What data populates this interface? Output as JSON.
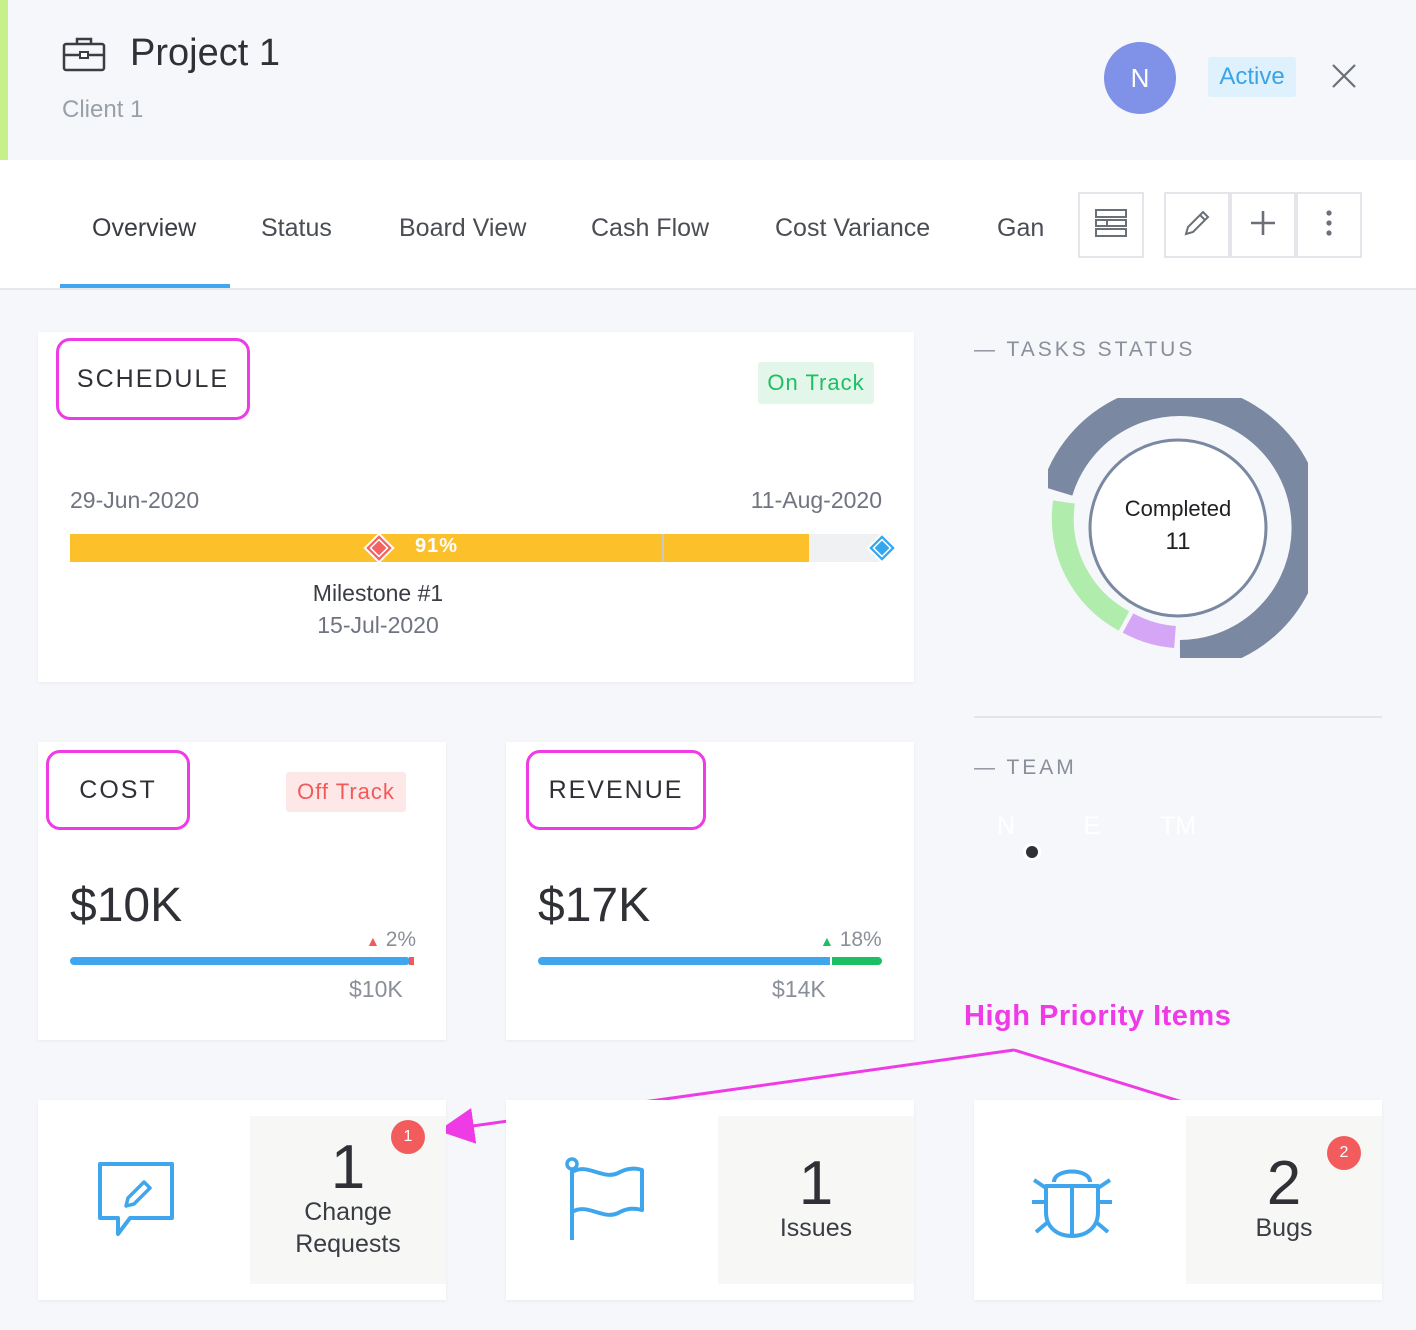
{
  "header": {
    "title": "Project 1",
    "client": "Client 1",
    "owner_initial": "N",
    "status": "Active"
  },
  "tabs": [
    {
      "label": "Overview"
    },
    {
      "label": "Status"
    },
    {
      "label": "Board View"
    },
    {
      "label": "Cash Flow"
    },
    {
      "label": "Cost Variance"
    },
    {
      "label": "Gan"
    }
  ],
  "toolbar": {
    "layout_icon": "table-layout-icon",
    "edit_icon": "pencil-icon",
    "add_icon": "plus-icon",
    "more_icon": "more-vertical-icon"
  },
  "schedule": {
    "title": "SCHEDULE",
    "status": "On Track",
    "start_date": "29-Jun-2020",
    "end_date": "11-Aug-2020",
    "progress_label": "91%",
    "progress": 0.91,
    "milestone_name": "Milestone #1",
    "milestone_date": "15-Jul-2020"
  },
  "cost": {
    "title": "COST",
    "status": "Off Track",
    "amount": "$10K",
    "change": "2%",
    "baseline": "$10K"
  },
  "revenue": {
    "title": "REVENUE",
    "amount": "$17K",
    "change": "18%",
    "baseline": "$14K"
  },
  "tasks": {
    "section_title": "TASKS STATUS",
    "center_label": "Completed",
    "center_value": "11"
  },
  "team": {
    "section_title": "TEAM",
    "members": [
      {
        "initials": "N",
        "color": "#8091e8"
      },
      {
        "initials": "E",
        "color": "#f26464"
      },
      {
        "initials": "TM",
        "color": "#56c5d0"
      }
    ]
  },
  "counters": {
    "change_requests": {
      "count": "1",
      "label1": "Change",
      "label2": "Requests",
      "badge": "1"
    },
    "issues": {
      "count": "1",
      "label": "Issues"
    },
    "bugs": {
      "count": "2",
      "label": "Bugs",
      "badge": "2"
    }
  },
  "annotation": {
    "text": "High Priority Items"
  },
  "colors": {
    "accent": "#42a5f0",
    "highlight": "#ee3be6",
    "progress": "#fcc12a"
  }
}
